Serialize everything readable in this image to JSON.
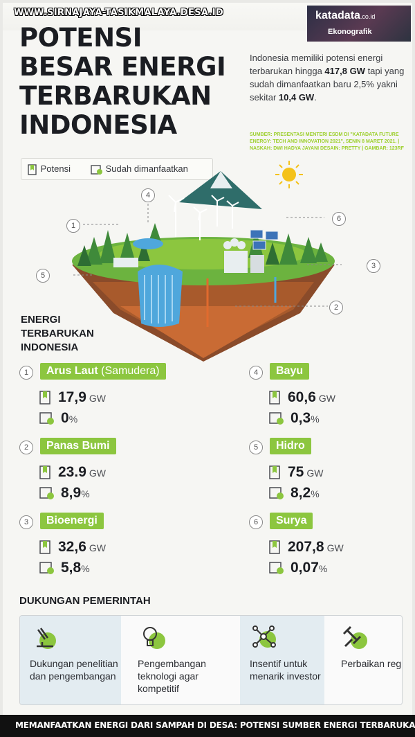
{
  "watermark_top": "WWW.SIRNAJAYA-TASIKMALAYA.DESA.ID",
  "brand": {
    "logo": "katadata",
    "logo_suffix": ".co.id",
    "tag": "Ekonografik"
  },
  "title_lines": [
    "POTENSI",
    "BESAR ENERGI",
    "TERBARUKAN",
    "INDONESIA"
  ],
  "intro": {
    "part1": "Indonesia memiliki potensi energi terbarukan hingga ",
    "bold1": "417,8 GW",
    "part2": " tapi yang sudah dimanfaatkan baru 2,5% yakni sekitar ",
    "bold2": "10,4 GW",
    "part3": "."
  },
  "source_note": "SUMBER: PRESENTASI MENTERI ESDM DI \"KATADATA FUTURE ENERGY: TECH AND INNOVATION 2021\", SENIN 8 MARET 2021. | NASKAH: DWI HADYA JAYANI DESAIN: PRETTY | GAMBAR: 123RF",
  "legend": {
    "potensi": "Potensi",
    "dimanfaatkan": "Sudah dimanfaatkan"
  },
  "section_title": [
    "ENERGI",
    "TERBARUKAN",
    "INDONESIA"
  ],
  "energy": [
    {
      "no": "1",
      "name": "Arus Laut",
      "name_extra": "(Samudera)",
      "potensi": "17,9",
      "unit": "GW",
      "pakai": "0",
      "pct": "%"
    },
    {
      "no": "2",
      "name": "Panas Bumi",
      "name_extra": "",
      "potensi": "23.9",
      "unit": "GW",
      "pakai": "8,9",
      "pct": "%"
    },
    {
      "no": "3",
      "name": "Bioenergi",
      "name_extra": "",
      "potensi": "32,6",
      "unit": "GW",
      "pakai": "5,8",
      "pct": "%"
    },
    {
      "no": "4",
      "name": "Bayu",
      "name_extra": "",
      "potensi": "60,6",
      "unit": "GW",
      "pakai": "0,3",
      "pct": "%"
    },
    {
      "no": "5",
      "name": "Hidro",
      "name_extra": "",
      "potensi": "75",
      "unit": "GW",
      "pakai": "8,2",
      "pct": "%"
    },
    {
      "no": "6",
      "name": "Surya",
      "name_extra": "",
      "potensi": "207,8",
      "unit": "GW",
      "pakai": "0,07",
      "pct": "%"
    }
  ],
  "callouts": [
    "1",
    "2",
    "3",
    "4",
    "5",
    "6"
  ],
  "gov_title": "DUKUNGAN PEMERINTAH",
  "gov": [
    {
      "text": "Dukungan penelitian dan pengembangan",
      "icon": "microscope-icon"
    },
    {
      "text": "Pengembangan teknologi agar kompetitif",
      "icon": "lightbulb-icon"
    },
    {
      "text": "Insentif untuk menarik investor",
      "icon": "network-icon"
    },
    {
      "text": "Perbaikan regulasi",
      "icon": "gavel-icon"
    }
  ],
  "watermark_bottom": "MEMANFAATKAN ENERGI DARI SAMPAH DI DESA: POTENSI SUMBER ENERGI TERBARUKAN",
  "colors": {
    "green": "#8cc63f",
    "dark": "#1b1d22",
    "sun": "#f4c21b",
    "panel_blue": "#e3ecf1"
  }
}
